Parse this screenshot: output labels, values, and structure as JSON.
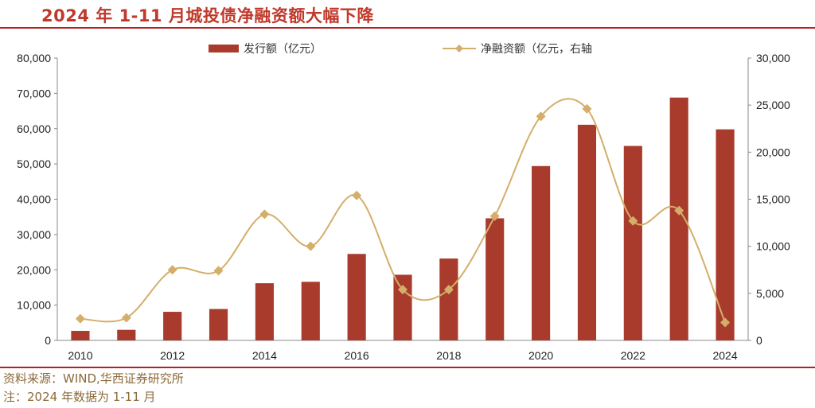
{
  "header": {
    "title": "2024 年 1-11 月城投债净融资额大幅下降"
  },
  "footer": {
    "source": "资料来源：WIND,华西证券研究所",
    "note": "注：2024 年数据为 1-11 月"
  },
  "colors": {
    "bar": "#a93b2c",
    "line": "#d4ae6a",
    "rule": "#b22222",
    "title": "#c0392b"
  },
  "chart_data": {
    "type": "bar",
    "categories": [
      "2010",
      "2011",
      "2012",
      "2013",
      "2014",
      "2015",
      "2016",
      "2017",
      "2018",
      "2019",
      "2020",
      "2021",
      "2022",
      "2023",
      "2024"
    ],
    "x_tick_labels": [
      "2010",
      "",
      "2012",
      "",
      "2014",
      "",
      "2016",
      "",
      "2018",
      "",
      "2020",
      "",
      "2022",
      "",
      "2024"
    ],
    "series": [
      {
        "name": "发行额（亿元）",
        "type": "bar",
        "axis": "left",
        "values": [
          2700,
          3000,
          8100,
          8900,
          16200,
          16600,
          24500,
          18600,
          23200,
          34600,
          49400,
          61100,
          55100,
          68800,
          59800
        ]
      },
      {
        "name": "净融资额（亿元，右轴",
        "type": "line",
        "axis": "right",
        "smooth": true,
        "marker": "diamond",
        "values": [
          2300,
          2400,
          7500,
          7400,
          13400,
          10000,
          15400,
          5400,
          5400,
          13200,
          23800,
          24600,
          12700,
          13800,
          1900
        ]
      }
    ],
    "y_left": {
      "lim": [
        0,
        80000
      ],
      "ticks": [
        "0",
        "10,000",
        "20,000",
        "30,000",
        "40,000",
        "50,000",
        "60,000",
        "70,000",
        "80,000"
      ]
    },
    "y_right": {
      "lim": [
        0,
        30000
      ],
      "ticks": [
        "0",
        "5,000",
        "10,000",
        "15,000",
        "20,000",
        "25,000",
        "30,000"
      ]
    },
    "grid": false,
    "legend_position": "top"
  }
}
